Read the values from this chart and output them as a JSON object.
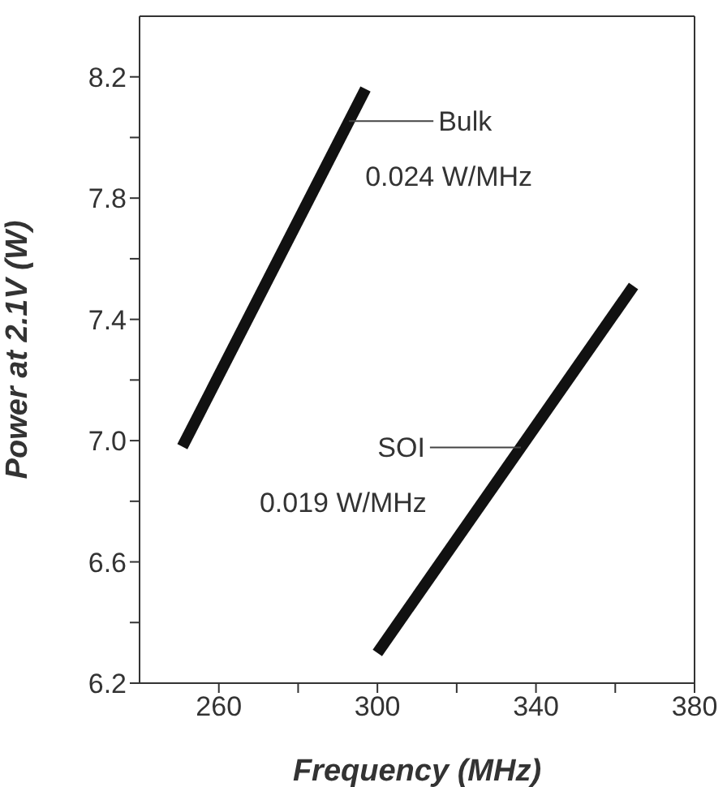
{
  "chart_data": {
    "type": "line",
    "xlabel": "Frequency (MHz)",
    "ylabel": "Power at 2.1V (W)",
    "xlim": [
      240,
      380
    ],
    "ylim": [
      6.2,
      8.4
    ],
    "xticks": [
      260,
      {
        "value": 280,
        "label": null
      },
      300,
      {
        "value": 320,
        "label": null
      },
      340,
      {
        "value": 360,
        "label": null
      },
      380
    ],
    "yticks": [
      6.2,
      {
        "value": 6.4,
        "label": null
      },
      6.6,
      {
        "value": 6.8,
        "label": null
      },
      {
        "value": 7,
        "label": "7.0"
      },
      {
        "value": 7.2,
        "label": null
      },
      7.4,
      {
        "value": 7.6,
        "label": null
      },
      7.8,
      {
        "value": 8.0,
        "label": null
      },
      8.2
    ],
    "grid": false,
    "legend": false,
    "marker": "none",
    "line_style": "solid",
    "series": [
      {
        "name": "Bulk",
        "color": "#111111",
        "x": [
          250.8,
          297
        ],
        "values": [
          6.98,
          8.16
        ]
      },
      {
        "name": "SOI",
        "color": "#111111",
        "x": [
          300,
          364.6
        ],
        "values": [
          6.3,
          7.51
        ]
      }
    ],
    "annotations": [
      "0.024 W/MHz",
      "0.019 W/MHz"
    ]
  }
}
